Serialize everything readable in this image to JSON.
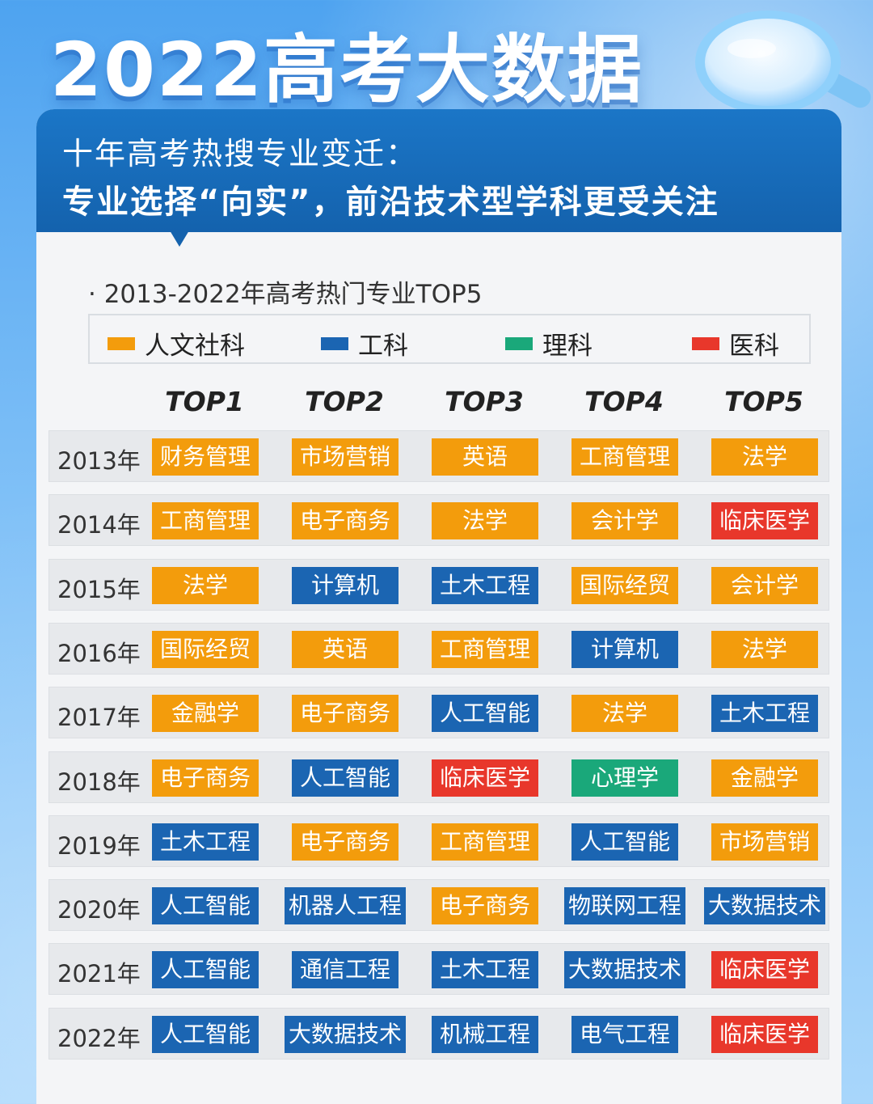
{
  "title": "2022高考大数据",
  "banner": {
    "line1": "十年高考热搜专业变迁：",
    "line2": "专业选择“向实”，前沿技术型学科更受关注"
  },
  "subtitle": "· 2013-2022年高考热门专业TOP5",
  "colors": {
    "humanities": "#f39c0c",
    "engineering": "#1b65b2",
    "science": "#1aa87a",
    "medicine": "#e8372b"
  },
  "legend": [
    {
      "label": "人文社科",
      "category": "humanities"
    },
    {
      "label": "工科",
      "category": "engineering"
    },
    {
      "label": "理科",
      "category": "science"
    },
    {
      "label": "医科",
      "category": "medicine"
    }
  ],
  "headers": [
    "TOP1",
    "TOP2",
    "TOP3",
    "TOP4",
    "TOP5"
  ],
  "rows": [
    {
      "year": "2013年",
      "majors": [
        {
          "name": "财务管理",
          "category": "humanities"
        },
        {
          "name": "市场营销",
          "category": "humanities"
        },
        {
          "name": "英语",
          "category": "humanities"
        },
        {
          "name": "工商管理",
          "category": "humanities"
        },
        {
          "name": "法学",
          "category": "humanities"
        }
      ]
    },
    {
      "year": "2014年",
      "majors": [
        {
          "name": "工商管理",
          "category": "humanities"
        },
        {
          "name": "电子商务",
          "category": "humanities"
        },
        {
          "name": "法学",
          "category": "humanities"
        },
        {
          "name": "会计学",
          "category": "humanities"
        },
        {
          "name": "临床医学",
          "category": "medicine"
        }
      ]
    },
    {
      "year": "2015年",
      "majors": [
        {
          "name": "法学",
          "category": "humanities"
        },
        {
          "name": "计算机",
          "category": "engineering"
        },
        {
          "name": "土木工程",
          "category": "engineering"
        },
        {
          "name": "国际经贸",
          "category": "humanities"
        },
        {
          "name": "会计学",
          "category": "humanities"
        }
      ]
    },
    {
      "year": "2016年",
      "majors": [
        {
          "name": "国际经贸",
          "category": "humanities"
        },
        {
          "name": "英语",
          "category": "humanities"
        },
        {
          "name": "工商管理",
          "category": "humanities"
        },
        {
          "name": "计算机",
          "category": "engineering"
        },
        {
          "name": "法学",
          "category": "humanities"
        }
      ]
    },
    {
      "year": "2017年",
      "majors": [
        {
          "name": "金融学",
          "category": "humanities"
        },
        {
          "name": "电子商务",
          "category": "humanities"
        },
        {
          "name": "人工智能",
          "category": "engineering"
        },
        {
          "name": "法学",
          "category": "humanities"
        },
        {
          "name": "土木工程",
          "category": "engineering"
        }
      ]
    },
    {
      "year": "2018年",
      "majors": [
        {
          "name": "电子商务",
          "category": "humanities"
        },
        {
          "name": "人工智能",
          "category": "engineering"
        },
        {
          "name": "临床医学",
          "category": "medicine"
        },
        {
          "name": "心理学",
          "category": "science"
        },
        {
          "name": "金融学",
          "category": "humanities"
        }
      ]
    },
    {
      "year": "2019年",
      "majors": [
        {
          "name": "土木工程",
          "category": "engineering"
        },
        {
          "name": "电子商务",
          "category": "humanities"
        },
        {
          "name": "工商管理",
          "category": "humanities"
        },
        {
          "name": "人工智能",
          "category": "engineering"
        },
        {
          "name": "市场营销",
          "category": "humanities"
        }
      ]
    },
    {
      "year": "2020年",
      "majors": [
        {
          "name": "人工智能",
          "category": "engineering"
        },
        {
          "name": "机器人工程",
          "category": "engineering"
        },
        {
          "name": "电子商务",
          "category": "humanities"
        },
        {
          "name": "物联网工程",
          "category": "engineering"
        },
        {
          "name": "大数据技术",
          "category": "engineering"
        }
      ]
    },
    {
      "year": "2021年",
      "majors": [
        {
          "name": "人工智能",
          "category": "engineering"
        },
        {
          "name": "通信工程",
          "category": "engineering"
        },
        {
          "name": "土木工程",
          "category": "engineering"
        },
        {
          "name": "大数据技术",
          "category": "engineering"
        },
        {
          "name": "临床医学",
          "category": "medicine"
        }
      ]
    },
    {
      "year": "2022年",
      "majors": [
        {
          "name": "人工智能",
          "category": "engineering"
        },
        {
          "name": "大数据技术",
          "category": "engineering"
        },
        {
          "name": "机械工程",
          "category": "engineering"
        },
        {
          "name": "电气工程",
          "category": "engineering"
        },
        {
          "name": "临床医学",
          "category": "medicine"
        }
      ]
    }
  ]
}
